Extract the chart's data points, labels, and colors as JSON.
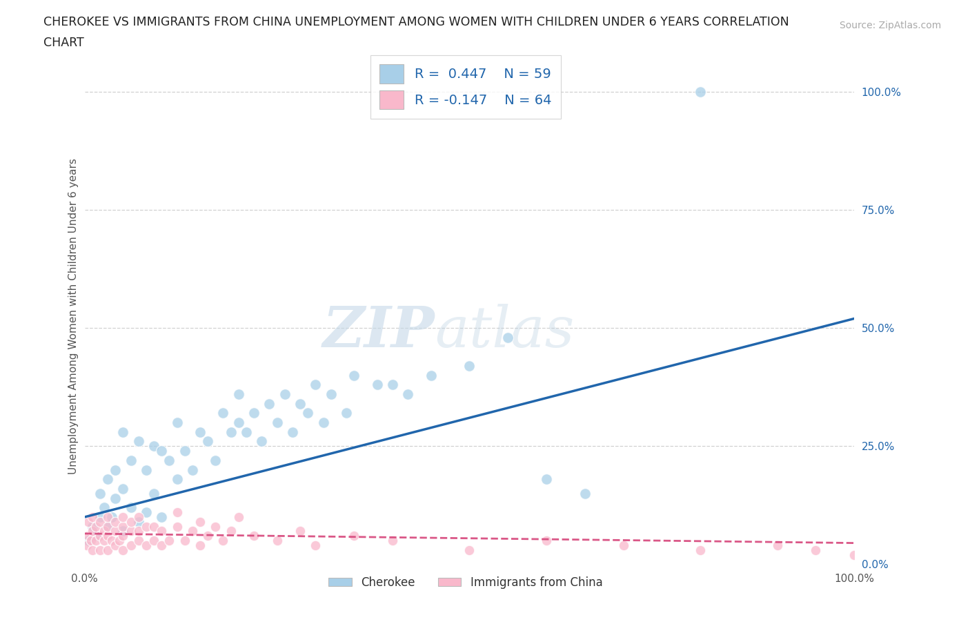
{
  "title_line1": "CHEROKEE VS IMMIGRANTS FROM CHINA UNEMPLOYMENT AMONG WOMEN WITH CHILDREN UNDER 6 YEARS CORRELATION",
  "title_line2": "CHART",
  "source": "Source: ZipAtlas.com",
  "ylabel": "Unemployment Among Women with Children Under 6 years",
  "xlim": [
    0,
    100
  ],
  "ylim": [
    0,
    105
  ],
  "grid_values": [
    25,
    50,
    75,
    100
  ],
  "ytick_values": [
    0,
    25,
    50,
    75,
    100
  ],
  "ytick_labels": [
    "0.0%",
    "25.0%",
    "50.0%",
    "75.0%",
    "100.0%"
  ],
  "xtick_values": [
    0,
    100
  ],
  "xtick_labels": [
    "0.0%",
    "100.0%"
  ],
  "cherokee_color": "#a8cfe8",
  "china_color": "#f9b8cb",
  "cherokee_line_color": "#2166ac",
  "china_line_color": "#d6457a",
  "R_cherokee": 0.447,
  "N_cherokee": 59,
  "R_china": -0.147,
  "N_china": 64,
  "cherokee_x": [
    0.5,
    1,
    1.5,
    2,
    2,
    2.5,
    3,
    3,
    3.5,
    4,
    4,
    5,
    5,
    5,
    6,
    6,
    7,
    7,
    8,
    8,
    9,
    9,
    10,
    10,
    11,
    12,
    12,
    13,
    14,
    15,
    16,
    17,
    18,
    19,
    20,
    20,
    21,
    22,
    23,
    24,
    25,
    26,
    27,
    28,
    29,
    30,
    31,
    32,
    34,
    35,
    38,
    40,
    42,
    45,
    50,
    55,
    80,
    60,
    65
  ],
  "cherokee_y": [
    5,
    8,
    6,
    10,
    15,
    12,
    8,
    18,
    10,
    14,
    20,
    7,
    16,
    28,
    12,
    22,
    9,
    26,
    11,
    20,
    15,
    25,
    10,
    24,
    22,
    18,
    30,
    24,
    20,
    28,
    26,
    22,
    32,
    28,
    30,
    36,
    28,
    32,
    26,
    34,
    30,
    36,
    28,
    34,
    32,
    38,
    30,
    36,
    32,
    40,
    38,
    38,
    36,
    40,
    42,
    48,
    100,
    18,
    15
  ],
  "china_x": [
    0.3,
    0.5,
    0.5,
    0.8,
    1,
    1,
    1,
    1.5,
    1.5,
    2,
    2,
    2,
    2.5,
    2.5,
    3,
    3,
    3,
    3,
    3.5,
    4,
    4,
    4,
    4.5,
    5,
    5,
    5,
    5,
    6,
    6,
    6,
    7,
    7,
    7,
    8,
    8,
    9,
    9,
    10,
    10,
    11,
    12,
    12,
    13,
    14,
    15,
    15,
    16,
    17,
    18,
    19,
    20,
    22,
    25,
    28,
    30,
    35,
    40,
    50,
    60,
    70,
    80,
    90,
    95,
    100
  ],
  "china_y": [
    4,
    6,
    9,
    5,
    3,
    7,
    10,
    5,
    8,
    3,
    6,
    9,
    5,
    7,
    3,
    6,
    8,
    10,
    5,
    4,
    7,
    9,
    5,
    3,
    6,
    8,
    10,
    4,
    7,
    9,
    5,
    7,
    10,
    4,
    8,
    5,
    8,
    4,
    7,
    5,
    8,
    11,
    5,
    7,
    4,
    9,
    6,
    8,
    5,
    7,
    10,
    6,
    5,
    7,
    4,
    6,
    5,
    3,
    5,
    4,
    3,
    4,
    3,
    2
  ],
  "line_cherokee_x0": 0,
  "line_cherokee_y0": 10,
  "line_cherokee_x1": 100,
  "line_cherokee_y1": 52,
  "line_china_x0": 0,
  "line_china_y0": 6.5,
  "line_china_x1": 100,
  "line_china_y1": 4.5,
  "background_color": "#ffffff"
}
